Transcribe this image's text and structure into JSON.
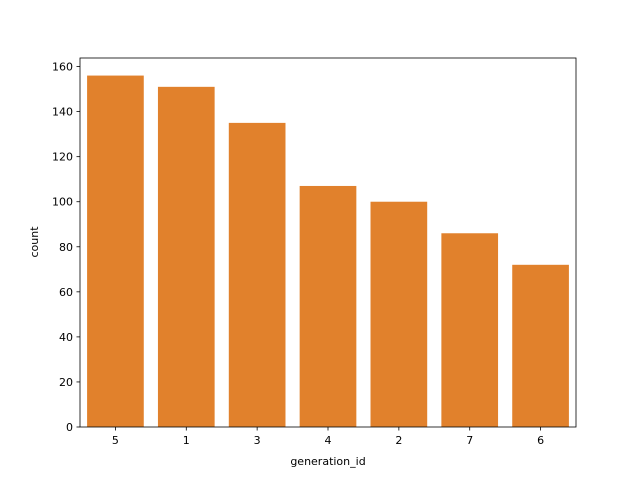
{
  "chart_data": {
    "type": "bar",
    "categories": [
      "5",
      "1",
      "3",
      "4",
      "2",
      "7",
      "6"
    ],
    "values": [
      156,
      151,
      135,
      107,
      100,
      86,
      72
    ],
    "title": "",
    "xlabel": "generation_id",
    "ylabel": "count",
    "ylim": [
      0,
      163.8
    ],
    "yticks": [
      "0",
      "20",
      "40",
      "60",
      "80",
      "100",
      "120",
      "140",
      "160"
    ],
    "grid": false,
    "bar_color": "#e1812c"
  }
}
